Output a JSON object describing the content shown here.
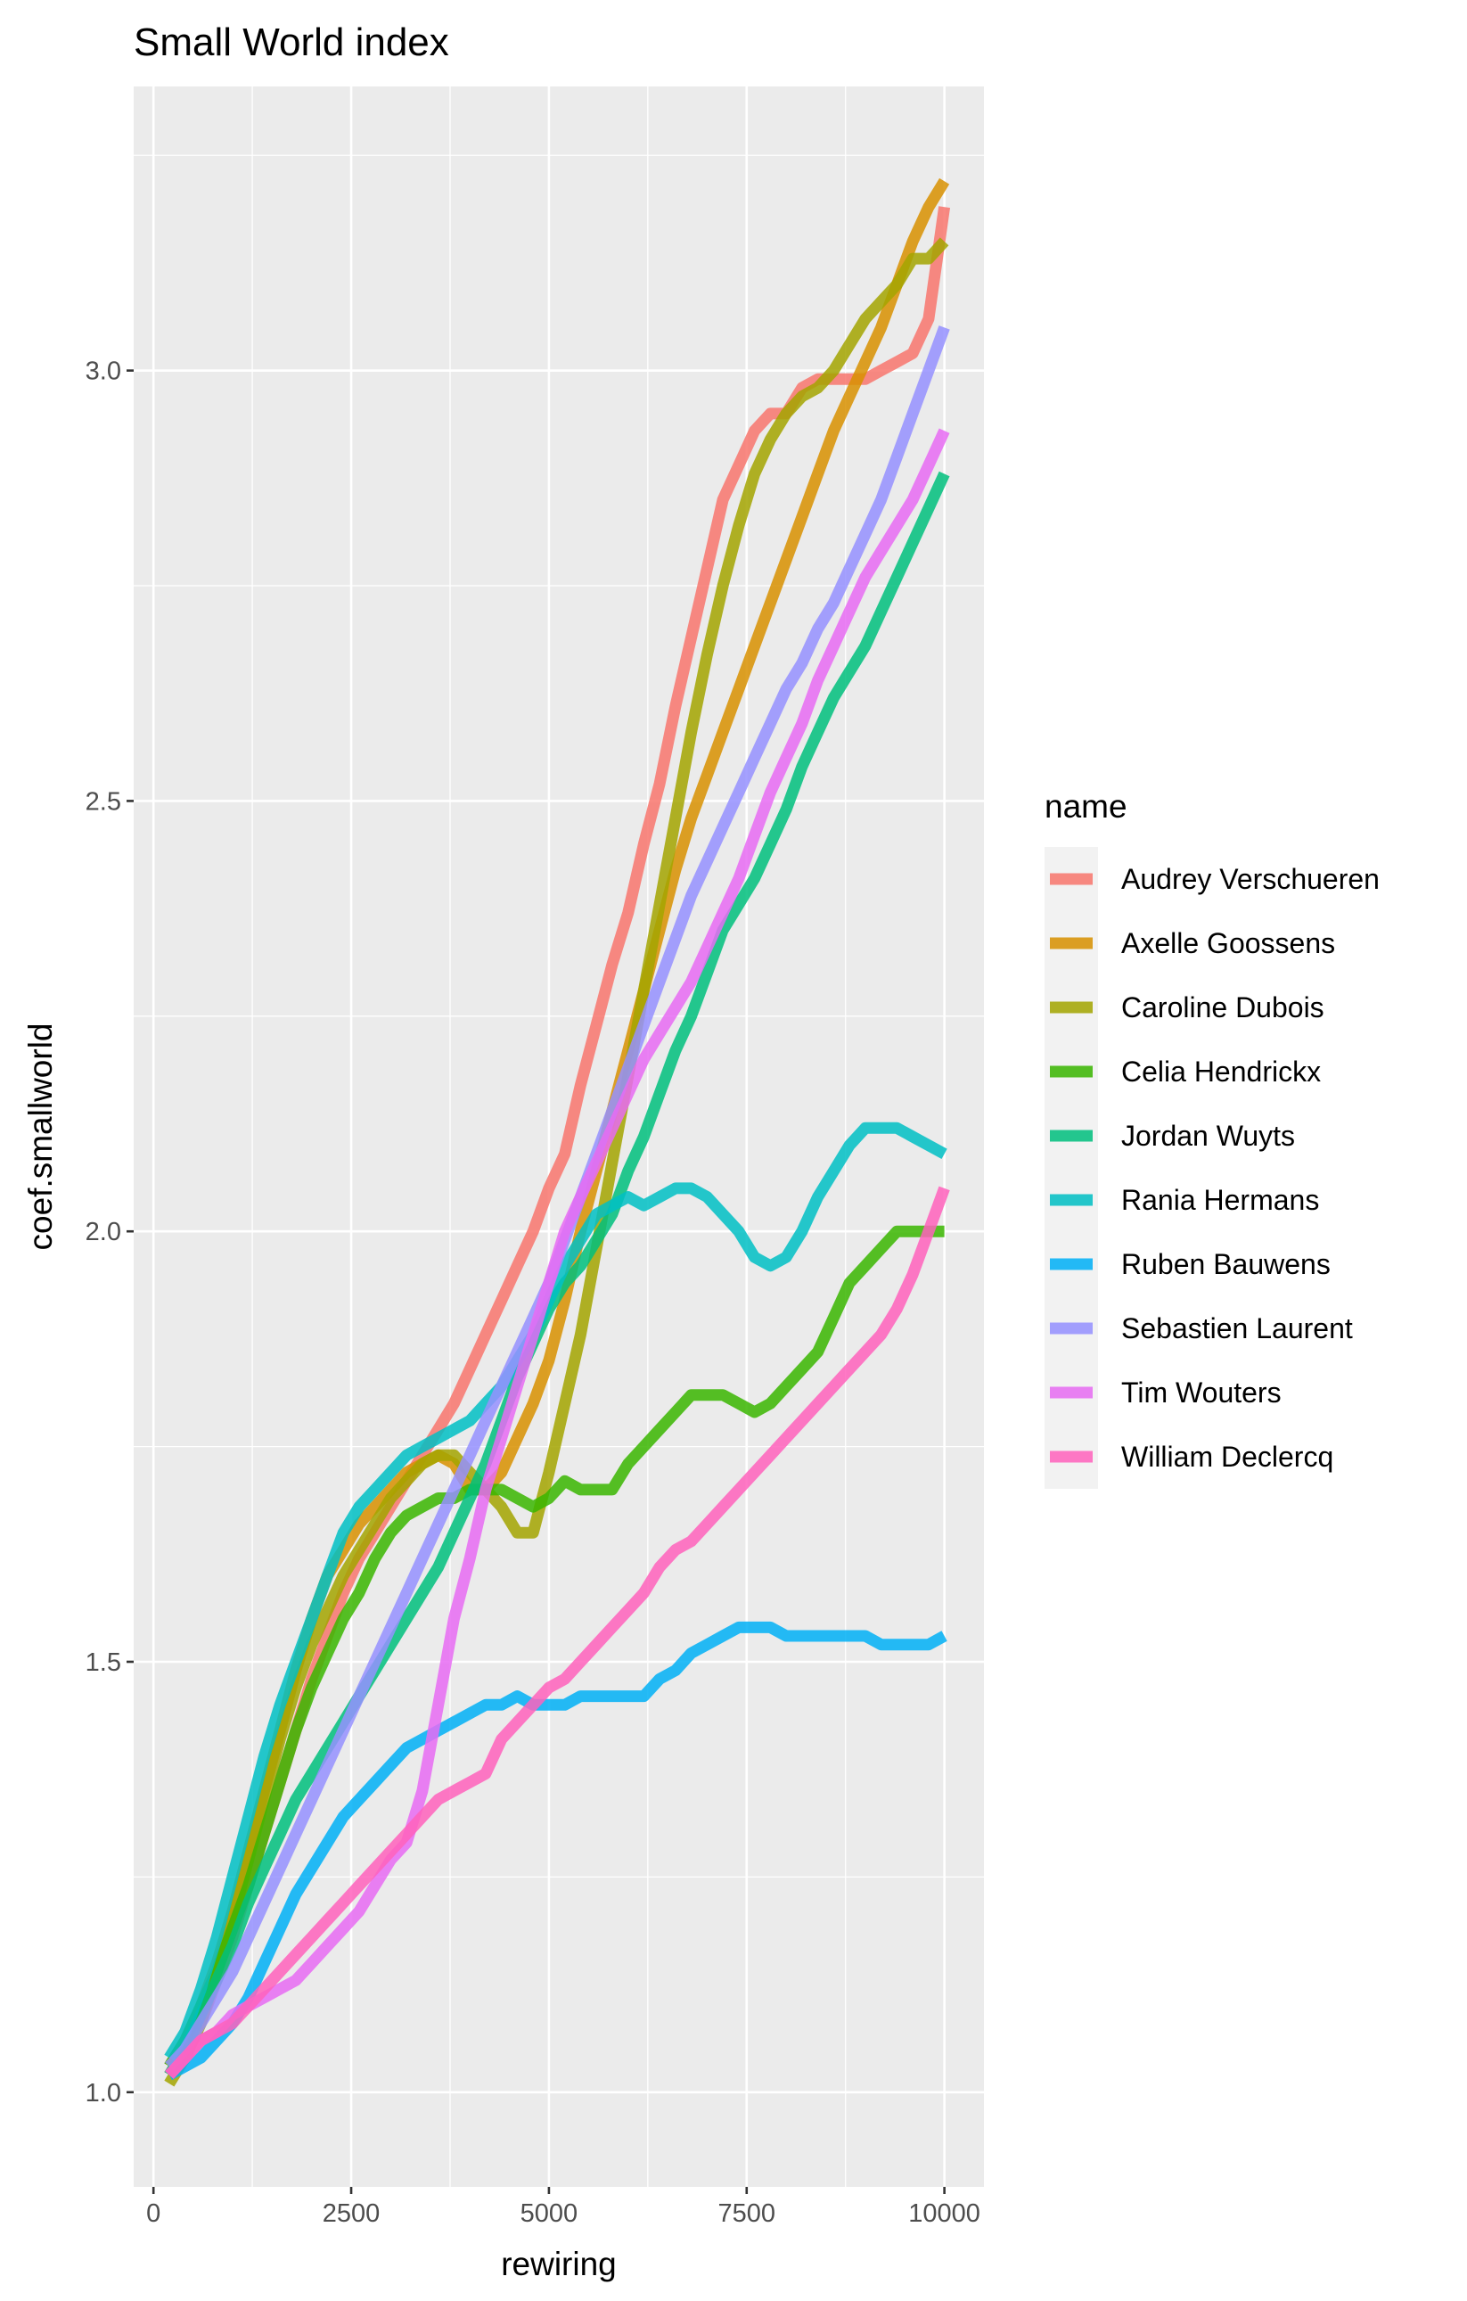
{
  "chart_data": {
    "type": "line",
    "title": "Small World index",
    "xlabel": "rewiring",
    "ylabel": "coef.smallworld",
    "xlim": [
      -250,
      10500
    ],
    "ylim": [
      0.89,
      3.33
    ],
    "x_ticks": [
      0,
      2500,
      5000,
      7500,
      10000
    ],
    "x_tick_labels": [
      "0",
      "2500",
      "5000",
      "7500",
      "10000"
    ],
    "y_ticks": [
      1.0,
      1.5,
      2.0,
      2.5,
      3.0
    ],
    "y_tick_labels": [
      "1.0",
      "1.5",
      "2.0",
      "2.5",
      "3.0"
    ],
    "grid": true,
    "legend_title": "name",
    "legend_position": "right",
    "x": [
      200,
      400,
      600,
      800,
      1000,
      1200,
      1400,
      1600,
      1800,
      2000,
      2200,
      2400,
      2600,
      2800,
      3000,
      3200,
      3400,
      3600,
      3800,
      4000,
      4200,
      4400,
      4600,
      4800,
      5000,
      5200,
      5400,
      5600,
      5800,
      6000,
      6200,
      6400,
      6600,
      6800,
      7000,
      7200,
      7400,
      7600,
      7800,
      8000,
      8200,
      8400,
      8600,
      8800,
      9000,
      9200,
      9400,
      9600,
      9800,
      10000
    ],
    "series": [
      {
        "name": "Audrey Verschueren",
        "color": "#F8766D",
        "values": [
          1.02,
          1.05,
          1.08,
          1.13,
          1.18,
          1.24,
          1.3,
          1.36,
          1.42,
          1.48,
          1.53,
          1.58,
          1.62,
          1.65,
          1.68,
          1.71,
          1.74,
          1.77,
          1.8,
          1.84,
          1.88,
          1.92,
          1.96,
          2.0,
          2.05,
          2.09,
          2.17,
          2.24,
          2.31,
          2.37,
          2.45,
          2.52,
          2.61,
          2.69,
          2.77,
          2.85,
          2.89,
          2.93,
          2.95,
          2.95,
          2.98,
          2.99,
          2.99,
          2.99,
          2.99,
          3.0,
          3.01,
          3.02,
          3.06,
          3.19
        ]
      },
      {
        "name": "Axelle Goossens",
        "color": "#D89000",
        "values": [
          1.03,
          1.06,
          1.1,
          1.15,
          1.21,
          1.28,
          1.35,
          1.42,
          1.49,
          1.55,
          1.6,
          1.63,
          1.66,
          1.68,
          1.7,
          1.72,
          1.73,
          1.74,
          1.73,
          1.7,
          1.7,
          1.72,
          1.76,
          1.8,
          1.85,
          1.92,
          2.0,
          2.07,
          2.14,
          2.21,
          2.28,
          2.35,
          2.42,
          2.48,
          2.53,
          2.58,
          2.63,
          2.68,
          2.73,
          2.78,
          2.83,
          2.88,
          2.93,
          2.97,
          3.01,
          3.05,
          3.1,
          3.15,
          3.19,
          3.22
        ]
      },
      {
        "name": "Caroline Dubois",
        "color": "#A3A500",
        "values": [
          1.01,
          1.04,
          1.08,
          1.14,
          1.2,
          1.27,
          1.34,
          1.41,
          1.47,
          1.52,
          1.56,
          1.6,
          1.63,
          1.66,
          1.69,
          1.71,
          1.73,
          1.74,
          1.74,
          1.72,
          1.7,
          1.68,
          1.65,
          1.65,
          1.72,
          1.8,
          1.88,
          1.98,
          2.08,
          2.18,
          2.28,
          2.38,
          2.48,
          2.58,
          2.67,
          2.75,
          2.82,
          2.88,
          2.92,
          2.95,
          2.97,
          2.98,
          3.0,
          3.03,
          3.06,
          3.08,
          3.1,
          3.13,
          3.13,
          3.15
        ]
      },
      {
        "name": "Celia Hendrickx",
        "color": "#39B600",
        "values": [
          1.03,
          1.06,
          1.1,
          1.14,
          1.19,
          1.24,
          1.3,
          1.36,
          1.42,
          1.47,
          1.51,
          1.55,
          1.58,
          1.62,
          1.65,
          1.67,
          1.68,
          1.69,
          1.69,
          1.7,
          1.7,
          1.7,
          1.69,
          1.68,
          1.69,
          1.71,
          1.7,
          1.7,
          1.7,
          1.73,
          1.75,
          1.77,
          1.79,
          1.81,
          1.81,
          1.81,
          1.8,
          1.79,
          1.8,
          1.82,
          1.84,
          1.86,
          1.9,
          1.94,
          1.96,
          1.98,
          2.0,
          2.0,
          2.0,
          2.0
        ]
      },
      {
        "name": "Jordan Wuyts",
        "color": "#00BF7D",
        "values": [
          1.02,
          1.05,
          1.09,
          1.13,
          1.17,
          1.22,
          1.26,
          1.3,
          1.34,
          1.37,
          1.4,
          1.43,
          1.46,
          1.49,
          1.52,
          1.55,
          1.58,
          1.61,
          1.65,
          1.69,
          1.73,
          1.78,
          1.83,
          1.87,
          1.91,
          1.94,
          1.96,
          1.99,
          2.02,
          2.07,
          2.11,
          2.16,
          2.21,
          2.25,
          2.3,
          2.35,
          2.38,
          2.41,
          2.45,
          2.49,
          2.54,
          2.58,
          2.62,
          2.65,
          2.68,
          2.72,
          2.76,
          2.8,
          2.84,
          2.88
        ]
      },
      {
        "name": "Rania Hermans",
        "color": "#00BFC4",
        "values": [
          1.04,
          1.07,
          1.12,
          1.18,
          1.25,
          1.32,
          1.39,
          1.45,
          1.5,
          1.55,
          1.6,
          1.65,
          1.68,
          1.7,
          1.72,
          1.74,
          1.75,
          1.76,
          1.77,
          1.78,
          1.8,
          1.82,
          1.85,
          1.88,
          1.92,
          1.96,
          1.99,
          2.02,
          2.03,
          2.04,
          2.03,
          2.04,
          2.05,
          2.05,
          2.04,
          2.02,
          2.0,
          1.97,
          1.96,
          1.97,
          2.0,
          2.04,
          2.07,
          2.1,
          2.12,
          2.12,
          2.12,
          2.11,
          2.1,
          2.09
        ]
      },
      {
        "name": "Ruben Bauwens",
        "color": "#00B0F6",
        "values": [
          1.02,
          1.03,
          1.04,
          1.06,
          1.08,
          1.11,
          1.15,
          1.19,
          1.23,
          1.26,
          1.29,
          1.32,
          1.34,
          1.36,
          1.38,
          1.4,
          1.41,
          1.42,
          1.43,
          1.44,
          1.45,
          1.45,
          1.46,
          1.45,
          1.45,
          1.45,
          1.46,
          1.46,
          1.46,
          1.46,
          1.46,
          1.48,
          1.49,
          1.51,
          1.52,
          1.53,
          1.54,
          1.54,
          1.54,
          1.53,
          1.53,
          1.53,
          1.53,
          1.53,
          1.53,
          1.52,
          1.52,
          1.52,
          1.52,
          1.53
        ]
      },
      {
        "name": "Sebastien Laurent",
        "color": "#9590FF",
        "values": [
          1.03,
          1.05,
          1.08,
          1.11,
          1.14,
          1.18,
          1.22,
          1.26,
          1.3,
          1.34,
          1.38,
          1.42,
          1.46,
          1.5,
          1.54,
          1.58,
          1.62,
          1.66,
          1.7,
          1.74,
          1.78,
          1.82,
          1.86,
          1.9,
          1.94,
          1.99,
          2.04,
          2.09,
          2.14,
          2.19,
          2.24,
          2.29,
          2.34,
          2.39,
          2.43,
          2.47,
          2.51,
          2.55,
          2.59,
          2.63,
          2.66,
          2.7,
          2.73,
          2.77,
          2.81,
          2.85,
          2.9,
          2.95,
          3.0,
          3.05
        ]
      },
      {
        "name": "Tim Wouters",
        "color": "#E76BF3",
        "values": [
          1.02,
          1.04,
          1.06,
          1.07,
          1.09,
          1.1,
          1.11,
          1.12,
          1.13,
          1.15,
          1.17,
          1.19,
          1.21,
          1.24,
          1.27,
          1.29,
          1.35,
          1.45,
          1.55,
          1.62,
          1.7,
          1.76,
          1.82,
          1.88,
          1.94,
          2.0,
          2.04,
          2.08,
          2.12,
          2.16,
          2.2,
          2.23,
          2.26,
          2.29,
          2.33,
          2.37,
          2.41,
          2.46,
          2.51,
          2.55,
          2.59,
          2.64,
          2.68,
          2.72,
          2.76,
          2.79,
          2.82,
          2.85,
          2.89,
          2.93
        ]
      },
      {
        "name": "William Declercq",
        "color": "#FF62BC",
        "values": [
          1.02,
          1.04,
          1.06,
          1.07,
          1.08,
          1.1,
          1.12,
          1.14,
          1.16,
          1.18,
          1.2,
          1.22,
          1.24,
          1.26,
          1.28,
          1.3,
          1.32,
          1.34,
          1.35,
          1.36,
          1.37,
          1.41,
          1.43,
          1.45,
          1.47,
          1.48,
          1.5,
          1.52,
          1.54,
          1.56,
          1.58,
          1.61,
          1.63,
          1.64,
          1.66,
          1.68,
          1.7,
          1.72,
          1.74,
          1.76,
          1.78,
          1.8,
          1.82,
          1.84,
          1.86,
          1.88,
          1.91,
          1.95,
          2.0,
          2.05
        ]
      }
    ]
  }
}
